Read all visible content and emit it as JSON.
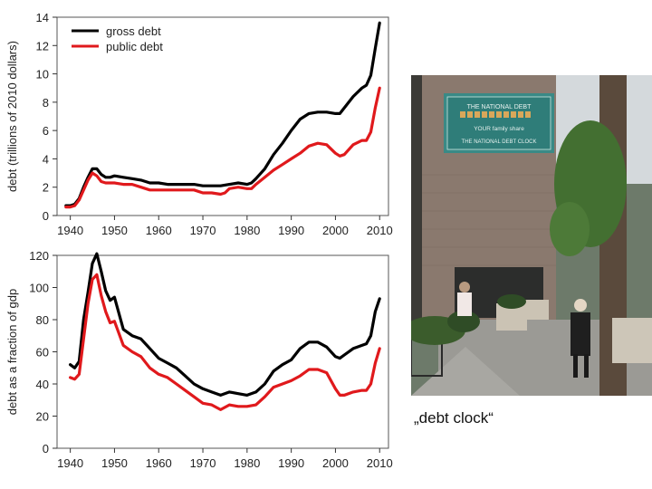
{
  "chart_data": [
    {
      "type": "line",
      "ylabel": "debt (trillions of 2010 dollars)",
      "xlim": [
        1937,
        2012
      ],
      "ylim": [
        0,
        14
      ],
      "xticks": [
        1940,
        1950,
        1960,
        1970,
        1980,
        1990,
        2000,
        2010
      ],
      "yticks": [
        0,
        2,
        4,
        6,
        8,
        10,
        12,
        14
      ],
      "grid": false,
      "legend": "top-left",
      "series": [
        {
          "name": "gross debt",
          "color": "#000000",
          "x": [
            1939,
            1940,
            1941,
            1942,
            1943,
            1944,
            1945,
            1946,
            1947,
            1948,
            1949,
            1950,
            1952,
            1954,
            1956,
            1958,
            1960,
            1962,
            1964,
            1966,
            1968,
            1970,
            1972,
            1974,
            1976,
            1978,
            1980,
            1981,
            1982,
            1984,
            1986,
            1988,
            1990,
            1992,
            1994,
            1996,
            1998,
            2000,
            2001,
            2002,
            2004,
            2006,
            2007,
            2008,
            2009,
            2010
          ],
          "y": [
            0.7,
            0.7,
            0.8,
            1.2,
            2.0,
            2.7,
            3.3,
            3.3,
            2.9,
            2.7,
            2.7,
            2.8,
            2.7,
            2.6,
            2.5,
            2.3,
            2.3,
            2.2,
            2.2,
            2.2,
            2.2,
            2.1,
            2.1,
            2.1,
            2.2,
            2.3,
            2.2,
            2.3,
            2.6,
            3.3,
            4.3,
            5.1,
            6.0,
            6.8,
            7.2,
            7.3,
            7.3,
            7.2,
            7.2,
            7.6,
            8.4,
            9.0,
            9.2,
            9.9,
            11.8,
            13.6
          ]
        },
        {
          "name": "public debt",
          "color": "#e0191c",
          "x": [
            1939,
            1940,
            1941,
            1942,
            1943,
            1944,
            1945,
            1946,
            1947,
            1948,
            1950,
            1952,
            1954,
            1956,
            1958,
            1960,
            1962,
            1964,
            1966,
            1968,
            1970,
            1972,
            1974,
            1975,
            1976,
            1978,
            1980,
            1981,
            1982,
            1984,
            1986,
            1988,
            1990,
            1992,
            1994,
            1996,
            1998,
            2000,
            2001,
            2002,
            2004,
            2006,
            2007,
            2008,
            2009,
            2010
          ],
          "y": [
            0.6,
            0.6,
            0.7,
            1.1,
            1.8,
            2.5,
            3.0,
            2.8,
            2.4,
            2.3,
            2.3,
            2.2,
            2.2,
            2.0,
            1.8,
            1.8,
            1.8,
            1.8,
            1.8,
            1.8,
            1.6,
            1.6,
            1.5,
            1.6,
            1.9,
            2.0,
            1.9,
            1.9,
            2.2,
            2.7,
            3.2,
            3.6,
            4.0,
            4.4,
            4.9,
            5.1,
            5.0,
            4.4,
            4.2,
            4.3,
            5.0,
            5.3,
            5.3,
            5.9,
            7.6,
            9.0
          ]
        }
      ]
    },
    {
      "type": "line",
      "ylabel": "debt as a fraction of gdp",
      "xlim": [
        1937,
        2012
      ],
      "ylim": [
        0,
        120
      ],
      "xticks": [
        1940,
        1950,
        1960,
        1970,
        1980,
        1990,
        2000,
        2010
      ],
      "yticks": [
        0,
        20,
        40,
        60,
        80,
        100,
        120
      ],
      "grid": false,
      "series": [
        {
          "name": "gross debt",
          "color": "#000000",
          "x": [
            1940,
            1941,
            1942,
            1943,
            1944,
            1945,
            1946,
            1947,
            1948,
            1949,
            1950,
            1952,
            1954,
            1956,
            1958,
            1960,
            1962,
            1964,
            1966,
            1968,
            1970,
            1972,
            1974,
            1976,
            1978,
            1980,
            1982,
            1984,
            1986,
            1988,
            1990,
            1992,
            1994,
            1996,
            1998,
            2000,
            2001,
            2002,
            2004,
            2006,
            2007,
            2008,
            2009,
            2010
          ],
          "y": [
            52,
            50,
            54,
            80,
            97,
            115,
            121,
            110,
            98,
            92,
            94,
            74,
            70,
            68,
            62,
            56,
            53,
            50,
            45,
            40,
            37,
            35,
            33,
            35,
            34,
            33,
            35,
            40,
            48,
            52,
            55,
            62,
            66,
            66,
            63,
            57,
            56,
            58,
            62,
            64,
            65,
            70,
            85,
            93
          ]
        },
        {
          "name": "public debt",
          "color": "#e0191c",
          "x": [
            1940,
            1941,
            1942,
            1943,
            1944,
            1945,
            1946,
            1947,
            1948,
            1949,
            1950,
            1952,
            1954,
            1956,
            1958,
            1960,
            1962,
            1964,
            1966,
            1968,
            1970,
            1972,
            1974,
            1976,
            1978,
            1980,
            1982,
            1984,
            1986,
            1988,
            1990,
            1992,
            1994,
            1996,
            1998,
            2000,
            2001,
            2002,
            2004,
            2006,
            2007,
            2008,
            2009,
            2010
          ],
          "y": [
            44,
            43,
            46,
            68,
            90,
            105,
            108,
            95,
            85,
            78,
            79,
            64,
            60,
            57,
            50,
            46,
            44,
            40,
            36,
            32,
            28,
            27,
            24,
            27,
            26,
            26,
            27,
            32,
            38,
            40,
            42,
            45,
            49,
            49,
            47,
            37,
            33,
            33,
            35,
            36,
            36,
            40,
            53,
            62
          ]
        }
      ]
    }
  ],
  "photo": {
    "sign_line1": "THE NATIONAL DEBT",
    "sign_line2": "YOUR family share",
    "sign_line3": "THE NATIONAL DEBT CLOCK",
    "colors": {
      "sky": "#d9dde0",
      "brick": "#8c7b70",
      "sign": "#3d8a86",
      "sidewalk": "#9a9a96",
      "tree": "#3f6b2d"
    }
  },
  "caption": "„debt clock“"
}
